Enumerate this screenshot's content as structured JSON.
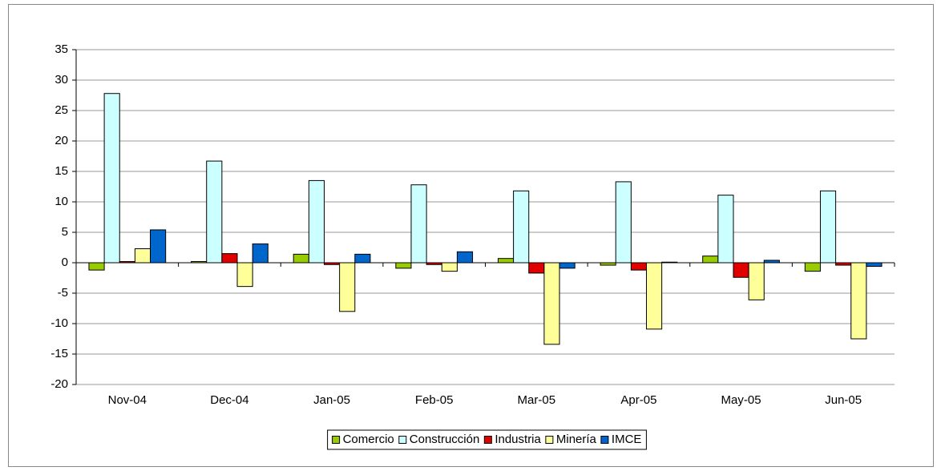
{
  "chart_data": {
    "type": "bar",
    "categories": [
      "Nov-04",
      "Dec-04",
      "Jan-05",
      "Feb-05",
      "Mar-05",
      "Apr-05",
      "May-05",
      "Jun-05"
    ],
    "series": [
      {
        "name": "Comercio",
        "color": "#99cc00",
        "values": [
          -1.2,
          0.2,
          1.4,
          -0.9,
          0.7,
          -0.4,
          1.1,
          -1.4
        ]
      },
      {
        "name": "Construcción",
        "color": "#ccffff",
        "values": [
          27.8,
          16.7,
          13.5,
          12.8,
          11.8,
          13.3,
          11.1,
          11.8
        ]
      },
      {
        "name": "Industria",
        "color": "#e00000",
        "values": [
          0.2,
          1.5,
          -0.3,
          -0.3,
          -1.7,
          -1.2,
          -2.4,
          -0.4
        ]
      },
      {
        "name": "Minería",
        "color": "#ffff99",
        "values": [
          2.3,
          -3.9,
          -8.0,
          -1.4,
          -13.4,
          -10.9,
          -6.1,
          -12.5
        ]
      },
      {
        "name": "IMCE",
        "color": "#0066cc",
        "values": [
          5.4,
          3.1,
          1.4,
          1.8,
          -0.9,
          0.1,
          0.4,
          -0.6
        ]
      }
    ],
    "ylim": [
      -20,
      35
    ],
    "yticks": [
      -20,
      -15,
      -10,
      -5,
      0,
      5,
      10,
      15,
      20,
      25,
      30,
      35
    ],
    "grid": true,
    "legend": "bottom"
  }
}
